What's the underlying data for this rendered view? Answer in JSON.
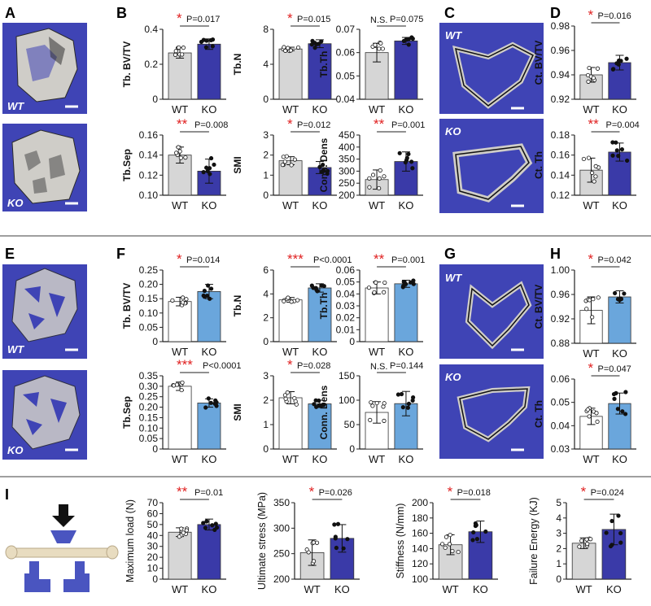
{
  "colors": {
    "wt_fill": "#d6d6d6",
    "ko_fill_a": "#3a3aa8",
    "ko_fill_f": "#6aa6dc",
    "white_fill": "#ffffff",
    "star": "#e02020",
    "scan_bg": "#3f44b5",
    "bone": "#cfcdc8"
  },
  "panel_letters": {
    "A": "A",
    "B": "B",
    "C": "C",
    "D": "D",
    "E": "E",
    "F": "F",
    "G": "G",
    "H": "H",
    "I": "I"
  },
  "image_labels": {
    "wt": "WT",
    "ko": "KO"
  },
  "chart_data": [
    {
      "id": "b1",
      "type": "bar",
      "ylabel": "Tb. BV/TV",
      "categories": [
        "WT",
        "KO"
      ],
      "values": [
        0.265,
        0.315
      ],
      "errors": [
        0.03,
        0.03
      ],
      "ylim": [
        0,
        0.4
      ],
      "ticks": [
        "0",
        "0.2",
        "0.4"
      ],
      "stars": "*",
      "pvalue": "P=0.017",
      "fill": "ko_fill_a"
    },
    {
      "id": "b2",
      "type": "bar",
      "ylabel": "Tb.N",
      "categories": [
        "WT",
        "KO"
      ],
      "values": [
        5.75,
        6.35
      ],
      "errors": [
        0.2,
        0.45
      ],
      "ylim": [
        0,
        8
      ],
      "ticks": [
        "0",
        "4",
        "8"
      ],
      "stars": "*",
      "pvalue": "P=0.015",
      "fill": "ko_fill_a"
    },
    {
      "id": "b3",
      "type": "bar",
      "ylabel": "Tb.Th",
      "categories": [
        "WT",
        "KO"
      ],
      "values": [
        0.06,
        0.065
      ],
      "errors": [
        0.004,
        0.0015
      ],
      "ylim": [
        0.04,
        0.07
      ],
      "ticks": [
        "0.04",
        "0.05",
        "0.06",
        "0.07"
      ],
      "stars": "N.S.",
      "pvalue": "P=0.075",
      "fill": "ko_fill_a"
    },
    {
      "id": "b4",
      "type": "bar",
      "ylabel": "Tb.Sep",
      "categories": [
        "WT",
        "KO"
      ],
      "values": [
        0.14,
        0.124
      ],
      "errors": [
        0.008,
        0.012
      ],
      "ylim": [
        0.1,
        0.16
      ],
      "ticks": [
        "0.10",
        "0.12",
        "0.14",
        "0.16"
      ],
      "stars": "**",
      "pvalue": "P=0.008",
      "fill": "ko_fill_a"
    },
    {
      "id": "b5",
      "type": "bar",
      "ylabel": "SMI",
      "categories": [
        "WT",
        "KO"
      ],
      "values": [
        1.72,
        1.38
      ],
      "errors": [
        0.2,
        0.3
      ],
      "ylim": [
        0,
        3
      ],
      "ticks": [
        "0",
        "1",
        "2",
        "3"
      ],
      "stars": "*",
      "pvalue": "P=0.012",
      "fill": "ko_fill_a"
    },
    {
      "id": "b6",
      "type": "bar",
      "ylabel": "Conn. Dens",
      "categories": [
        "WT",
        "KO"
      ],
      "values": [
        265,
        340
      ],
      "errors": [
        40,
        40
      ],
      "ylim": [
        200,
        450
      ],
      "ticks": [
        "200",
        "250",
        "300",
        "350",
        "400",
        "450"
      ],
      "stars": "**",
      "pvalue": "P=0.001",
      "fill": "ko_fill_a"
    },
    {
      "id": "d1",
      "type": "bar",
      "ylabel": "Ct. BV/TV",
      "categories": [
        "WT",
        "KO"
      ],
      "values": [
        0.94,
        0.95
      ],
      "errors": [
        0.006,
        0.006
      ],
      "ylim": [
        0.92,
        0.98
      ],
      "ticks": [
        "0.92",
        "0.94",
        "0.96",
        "0.98"
      ],
      "stars": "*",
      "pvalue": "P=0.016",
      "fill": "ko_fill_a"
    },
    {
      "id": "d2",
      "type": "bar",
      "ylabel": "Ct. Th",
      "categories": [
        "WT",
        "KO"
      ],
      "values": [
        0.145,
        0.163
      ],
      "errors": [
        0.012,
        0.009
      ],
      "ylim": [
        0.12,
        0.18
      ],
      "ticks": [
        "0.12",
        "0.14",
        "0.16",
        "0.18"
      ],
      "stars": "**",
      "pvalue": "P=0.004",
      "fill": "ko_fill_a"
    },
    {
      "id": "f1",
      "type": "bar",
      "ylabel": "Tb. BV/TV",
      "categories": [
        "WT",
        "KO"
      ],
      "values": [
        0.14,
        0.175
      ],
      "errors": [
        0.015,
        0.025
      ],
      "ylim": [
        0,
        0.25
      ],
      "ticks": [
        "0",
        "0.05",
        "0.10",
        "0.15",
        "0.20",
        "0.25"
      ],
      "stars": "*",
      "pvalue": "P=0.014",
      "fill": "ko_fill_f"
    },
    {
      "id": "f2",
      "type": "bar",
      "ylabel": "Tb.N",
      "categories": [
        "WT",
        "KO"
      ],
      "values": [
        3.5,
        4.5
      ],
      "errors": [
        0.2,
        0.35
      ],
      "ylim": [
        0,
        6
      ],
      "ticks": [
        "0",
        "2",
        "4",
        "6"
      ],
      "stars": "***",
      "pvalue": "P<0.0001",
      "fill": "ko_fill_f"
    },
    {
      "id": "f3",
      "type": "bar",
      "ylabel": "Tb.Th",
      "categories": [
        "WT",
        "KO"
      ],
      "values": [
        0.045,
        0.0485
      ],
      "errors": [
        0.005,
        0.003
      ],
      "ylim": [
        0,
        0.06
      ],
      "ticks": [
        "0",
        "0.01",
        "0.02",
        "0.03",
        "0.04",
        "0.05",
        "0.06"
      ],
      "stars": "**",
      "pvalue": "P=0.001",
      "fill": "ko_fill_f"
    },
    {
      "id": "f4",
      "type": "bar",
      "ylabel": "Tb.Sep",
      "categories": [
        "WT",
        "KO"
      ],
      "values": [
        0.3,
        0.22
      ],
      "errors": [
        0.02,
        0.02
      ],
      "ylim": [
        0,
        0.35
      ],
      "ticks": [
        "0",
        "0.05",
        "0.10",
        "0.15",
        "0.20",
        "0.25",
        "0.30",
        "0.35"
      ],
      "stars": "***",
      "pvalue": "P<0.0001",
      "fill": "ko_fill_f"
    },
    {
      "id": "f5",
      "type": "bar",
      "ylabel": "SMI",
      "categories": [
        "WT",
        "KO"
      ],
      "values": [
        2.1,
        1.85
      ],
      "errors": [
        0.25,
        0.15
      ],
      "ylim": [
        0,
        3
      ],
      "ticks": [
        "0",
        "1",
        "2",
        "3"
      ],
      "stars": "*",
      "pvalue": "P=0.028",
      "fill": "ko_fill_f"
    },
    {
      "id": "f6",
      "type": "bar",
      "ylabel": "Conn. Dens",
      "categories": [
        "WT",
        "KO"
      ],
      "values": [
        75,
        93
      ],
      "errors": [
        22,
        25
      ],
      "ylim": [
        0,
        150
      ],
      "ticks": [
        "0",
        "50",
        "100",
        "150"
      ],
      "stars": "N.S.",
      "pvalue": "P=0.144",
      "fill": "ko_fill_f"
    },
    {
      "id": "h1",
      "type": "bar",
      "ylabel": "Ct. BV/TV",
      "categories": [
        "WT",
        "KO"
      ],
      "values": [
        0.934,
        0.956
      ],
      "errors": [
        0.022,
        0.01
      ],
      "ylim": [
        0.88,
        1.0
      ],
      "ticks": [
        "0.88",
        "0.92",
        "0.96",
        "1.00"
      ],
      "stars": "*",
      "pvalue": "P=0.042",
      "fill": "ko_fill_f"
    },
    {
      "id": "h2",
      "type": "bar",
      "ylabel": "Ct. Th",
      "categories": [
        "WT",
        "KO"
      ],
      "values": [
        0.044,
        0.0495
      ],
      "errors": [
        0.0035,
        0.0045
      ],
      "ylim": [
        0.03,
        0.06
      ],
      "ticks": [
        "0.03",
        "0.04",
        "0.05",
        "0.06"
      ],
      "stars": "*",
      "pvalue": "P=0.047",
      "fill": "ko_fill_f"
    },
    {
      "id": "i1",
      "type": "bar",
      "ylabel": "Maximum load (N)",
      "categories": [
        "WT",
        "KO"
      ],
      "values": [
        43,
        50
      ],
      "errors": [
        4,
        5
      ],
      "ylim": [
        0,
        70
      ],
      "ticks": [
        "0",
        "10",
        "20",
        "30",
        "40",
        "50",
        "60",
        "70"
      ],
      "stars": "**",
      "pvalue": "P=0.01",
      "fill": "ko_fill_a"
    },
    {
      "id": "i2",
      "type": "bar",
      "ylabel": "Ultimate stress (MPa)",
      "categories": [
        "WT",
        "KO"
      ],
      "values": [
        252,
        280
      ],
      "errors": [
        25,
        27
      ],
      "ylim": [
        200,
        350
      ],
      "ticks": [
        "200",
        "250",
        "300",
        "350"
      ],
      "stars": "*",
      "pvalue": "P=0.026",
      "fill": "ko_fill_a"
    },
    {
      "id": "i3",
      "type": "bar",
      "ylabel": "Stiffness (N/mm)",
      "categories": [
        "WT",
        "KO"
      ],
      "values": [
        145,
        162
      ],
      "errors": [
        13,
        14
      ],
      "ylim": [
        100,
        200
      ],
      "ticks": [
        "100",
        "120",
        "140",
        "160",
        "180",
        "200"
      ],
      "stars": "*",
      "pvalue": "P=0.018",
      "fill": "ko_fill_a"
    },
    {
      "id": "i4",
      "type": "bar",
      "ylabel": "Failure Energy (KJ)",
      "categories": [
        "WT",
        "KO"
      ],
      "values": [
        2.35,
        3.25
      ],
      "errors": [
        0.35,
        1.0
      ],
      "ylim": [
        0,
        5
      ],
      "ticks": [
        "0",
        "1",
        "2",
        "3",
        "4",
        "5"
      ],
      "stars": "*",
      "pvalue": "P=0.024",
      "fill": "ko_fill_a"
    }
  ]
}
